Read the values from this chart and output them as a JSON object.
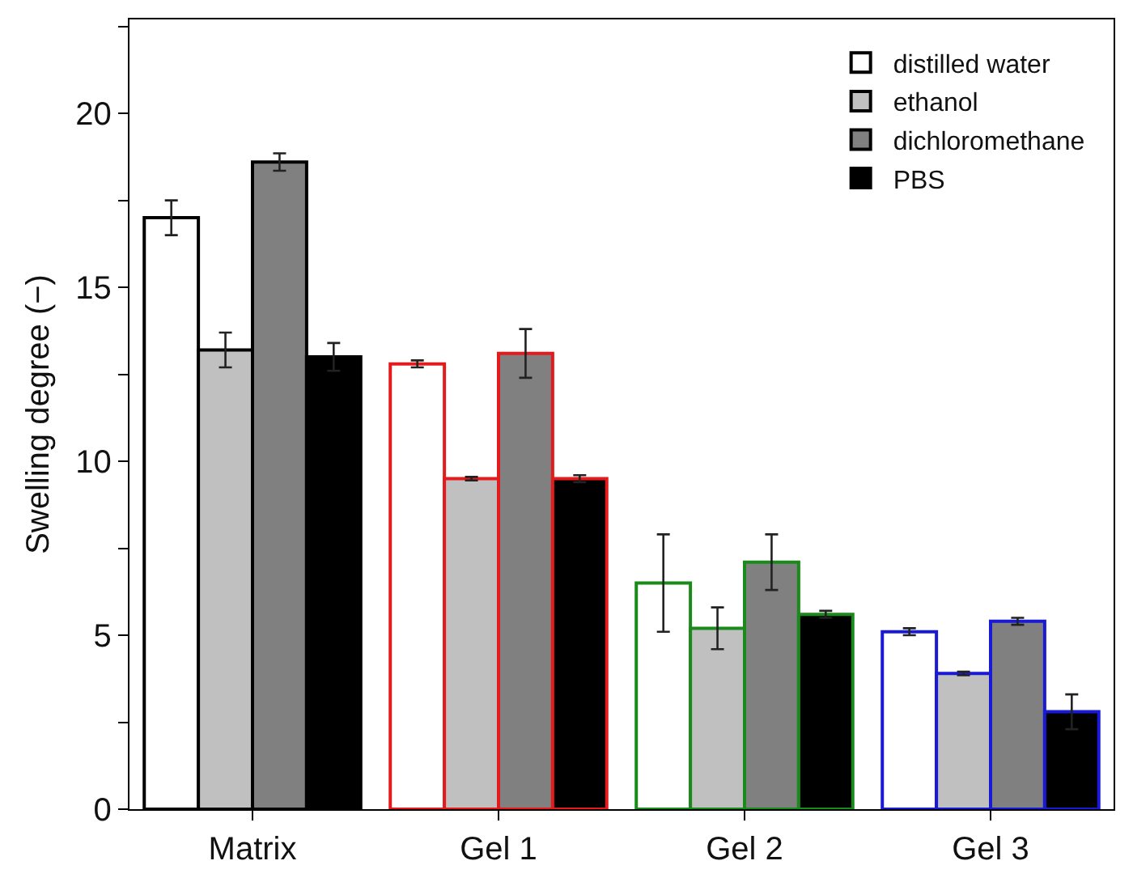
{
  "chart_data": {
    "type": "bar",
    "ylabel": "Swelling degree (−)",
    "categories": [
      "Matrix",
      "Gel 1",
      "Gel 2",
      "Gel 3"
    ],
    "ylim": [
      0,
      22.7
    ],
    "yticks": [
      0,
      {
        "value": 2.5,
        "label": null
      },
      5,
      {
        "value": 7.5,
        "label": null
      },
      10,
      {
        "value": 12.5,
        "label": null
      },
      15,
      {
        "value": 17.5,
        "label": null
      },
      20,
      {
        "value": 22.5,
        "label": null
      }
    ],
    "grid": false,
    "legend": "top right",
    "series": [
      {
        "name": "distilled water",
        "colors": [
          "#000000",
          "#e41a1c",
          "#1a8a1a",
          "#1a1ad6"
        ],
        "values": [
          17.0,
          12.8,
          6.5,
          5.1
        ],
        "errors": [
          0.5,
          0.1,
          1.4,
          0.1
        ]
      },
      {
        "name": "ethanol",
        "color": "#c0c0c0",
        "values": [
          13.2,
          9.5,
          5.2,
          3.9
        ],
        "errors": [
          0.5,
          0.05,
          0.6,
          0.05
        ]
      },
      {
        "name": "dichloromethane",
        "color": "#808080",
        "values": [
          18.6,
          13.1,
          7.1,
          5.4
        ],
        "errors": [
          0.25,
          0.7,
          0.8,
          0.1
        ]
      },
      {
        "name": "PBS",
        "color": "#000000",
        "values": [
          13.0,
          9.5,
          5.6,
          2.8
        ],
        "errors": [
          0.4,
          0.1,
          0.1,
          0.5
        ]
      }
    ]
  }
}
